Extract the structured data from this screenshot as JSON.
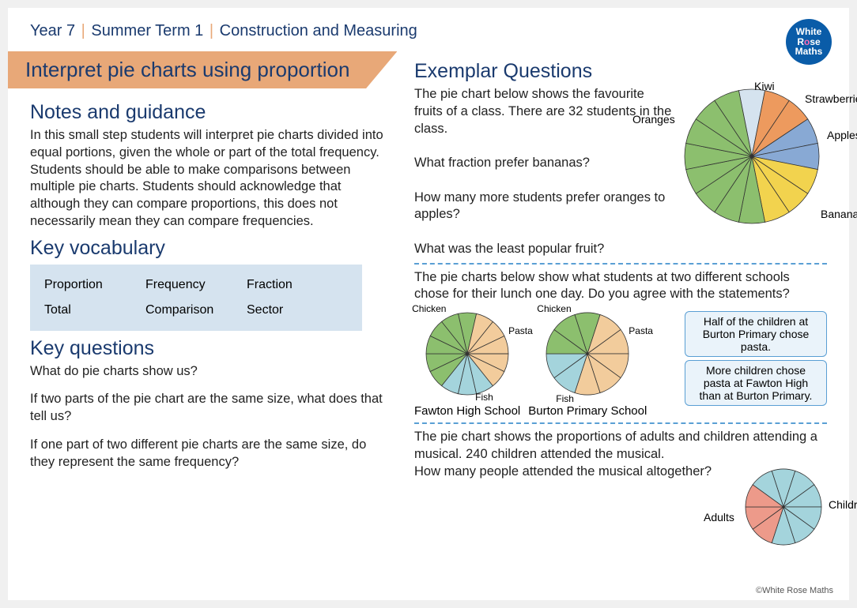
{
  "breadcrumb": {
    "year": "Year 7",
    "term": "Summer Term  1",
    "topic": "Construction and Measuring"
  },
  "logo": {
    "line1": "White",
    "line2": "Rose",
    "line3": "Maths"
  },
  "banner": "Interpret pie charts using proportion",
  "notes": {
    "heading": "Notes and guidance",
    "text": "In this small step students will interpret pie charts divided into equal portions, given the whole or part of the total frequency. Students should be able to make comparisons between multiple pie charts. Students should acknowledge that although they can compare proportions, this does not necessarily mean they can compare frequencies."
  },
  "vocab": {
    "heading": "Key vocabulary",
    "rows": [
      [
        "Proportion",
        "Frequency",
        "Fraction"
      ],
      [
        "Total",
        "Comparison",
        "Sector"
      ]
    ]
  },
  "keyq": {
    "heading": "Key questions",
    "items": [
      "What do pie charts show us?",
      "If two parts of the pie chart are the same size, what does that tell us?",
      "If one part of two different pie charts are the same size, do they represent the same frequency?"
    ]
  },
  "exemplar": {
    "heading": "Exemplar Questions",
    "q1": {
      "intro": "The pie chart below shows the favourite fruits of a class. There are 32 students in the class.",
      "a": "What fraction prefer bananas?",
      "b": "How many more students prefer oranges to apples?",
      "c": "What was the least popular fruit?",
      "chart": {
        "radius": 85,
        "sectors": 16,
        "colors": [
          "#d5e3ef",
          "#ed9a5e",
          "#ed9a5e",
          "#88a9d4",
          "#88a9d4",
          "#f2d34e",
          "#f2d34e",
          "#f2d34e",
          "#8cbf6e",
          "#8cbf6e",
          "#8cbf6e",
          "#8cbf6e",
          "#8cbf6e",
          "#8cbf6e",
          "#8cbf6e",
          "#8cbf6e"
        ],
        "labels": {
          "oranges": "Oranges",
          "kiwi": "Kiwi",
          "strawberries": "Strawberries",
          "apples": "Apples",
          "bananas": "Bananas"
        }
      }
    },
    "q2": {
      "intro": "The pie charts below show what students at two different schools chose for their lunch one day. Do you agree with the statements?",
      "fawton": {
        "name": "Fawton High School",
        "radius": 52,
        "sectors": 14,
        "colors": [
          "#8cbf6e",
          "#f2cc9c",
          "#f2cc9c",
          "#f2cc9c",
          "#f2cc9c",
          "#f2cc9c",
          "#a4d4dc",
          "#a4d4dc",
          "#a4d4dc",
          "#8cbf6e",
          "#8cbf6e",
          "#8cbf6e",
          "#8cbf6e",
          "#8cbf6e"
        ],
        "labels": {
          "chicken": "Chicken",
          "pasta": "Pasta",
          "fish": "Fish"
        }
      },
      "burton": {
        "name": "Burton Primary School",
        "radius": 52,
        "sectors": 10,
        "colors": [
          "#8cbf6e",
          "#f2cc9c",
          "#f2cc9c",
          "#f2cc9c",
          "#f2cc9c",
          "#f2cc9c",
          "#a4d4dc",
          "#a4d4dc",
          "#8cbf6e",
          "#8cbf6e"
        ],
        "labels": {
          "chicken": "Chicken",
          "pasta": "Pasta",
          "fish": "Fish"
        }
      },
      "statements": [
        "Half of the children at Burton Primary chose pasta.",
        "More children chose pasta at Fawton High than at Burton Primary."
      ]
    },
    "q3": {
      "intro": "The pie chart shows the proportions of adults and children attending a musical.  240 children attended the musical.",
      "question": "How many people attended the musical altogether?",
      "chart": {
        "radius": 48,
        "sectors": 10,
        "colors": [
          "#a4d4dc",
          "#a4d4dc",
          "#a4d4dc",
          "#a4d4dc",
          "#a4d4dc",
          "#a4d4dc",
          "#ed9a8a",
          "#ed9a8a",
          "#ed9a8a",
          "#a4d4dc"
        ],
        "labels": {
          "adults": "Adults",
          "children": "Children"
        }
      }
    }
  },
  "copyright": "©White Rose Maths"
}
